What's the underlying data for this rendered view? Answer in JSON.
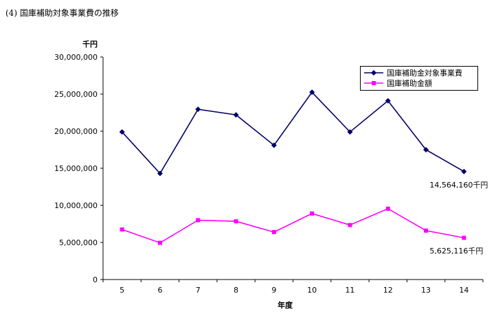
{
  "header": {
    "title": "(4)  国庫補助対象事業費の推移"
  },
  "chart_data": {
    "type": "line",
    "unit_label": "千円",
    "xlabel": "年度",
    "ylabel": "",
    "categories": [
      "5",
      "6",
      "7",
      "8",
      "9",
      "10",
      "11",
      "12",
      "13",
      "14"
    ],
    "ylim": [
      0,
      30000000
    ],
    "yticks": [
      0,
      5000000,
      10000000,
      15000000,
      20000000,
      25000000,
      30000000
    ],
    "ytick_labels": [
      "0",
      "5,000,000",
      "10,000,000",
      "15,000,000",
      "20,000,000",
      "25,000,000",
      "30,000,000"
    ],
    "grid": false,
    "legend_position": "top-right",
    "series": [
      {
        "name": "国庫補助金対象事業費",
        "color": "#000066",
        "marker": "diamond",
        "values": [
          19900000,
          14300000,
          22950000,
          22200000,
          18100000,
          25250000,
          19900000,
          24100000,
          17500000,
          14564160
        ]
      },
      {
        "name": "国庫補助金額",
        "color": "#ff00ff",
        "marker": "square",
        "values": [
          6750000,
          4950000,
          8000000,
          7850000,
          6400000,
          8900000,
          7350000,
          9550000,
          6600000,
          5625116
        ]
      }
    ],
    "annotations": [
      {
        "text": "14,564,160千円",
        "series": 0,
        "index": 9
      },
      {
        "text": "5,625,116千円",
        "series": 1,
        "index": 9
      }
    ]
  }
}
